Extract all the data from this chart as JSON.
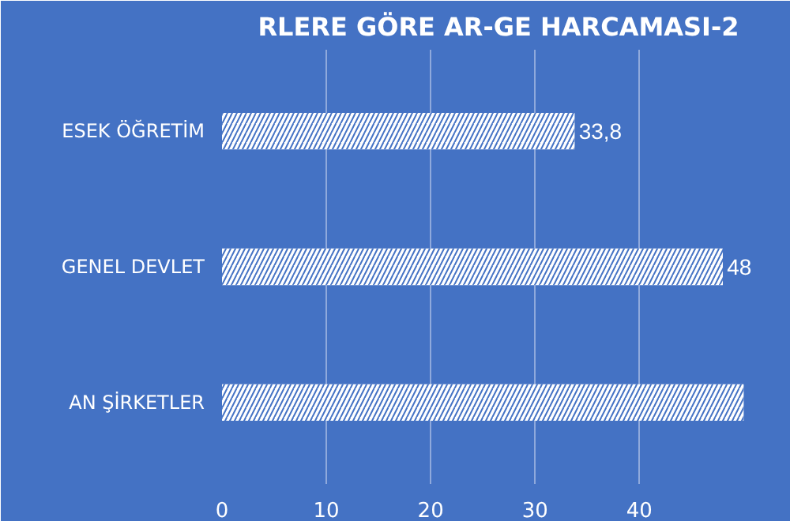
{
  "chart_data": {
    "type": "bar",
    "orientation": "horizontal",
    "title": "RLERE GÖRE AR-GE HARCAMASI-2",
    "categories": [
      "ESEK ÖĞRETİM",
      "GENEL DEVLET",
      "AN ŞİRKETLER"
    ],
    "values": [
      33.8,
      48,
      50
    ],
    "value_labels": [
      "33,8",
      "48",
      null
    ],
    "color": "#ffffff",
    "xlim": [
      0,
      53
    ],
    "xticks": [
      0,
      10,
      20,
      30,
      40
    ],
    "grid": "x"
  }
}
